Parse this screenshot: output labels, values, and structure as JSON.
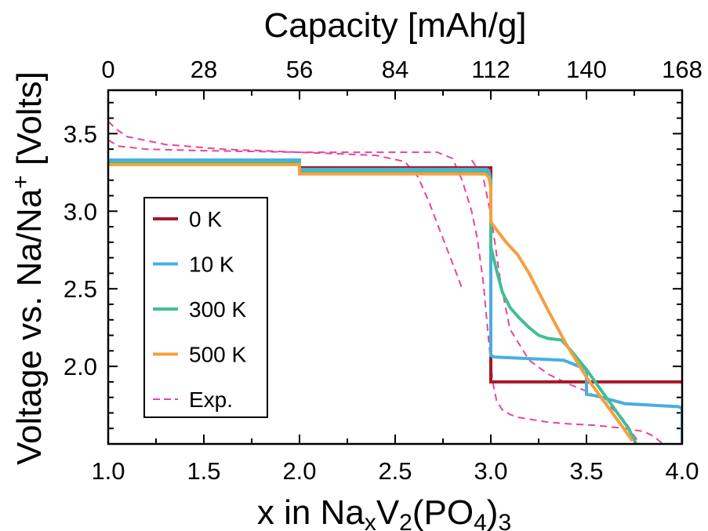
{
  "chart_data": {
    "type": "line",
    "xlabel": "x in NaₓV₂(PO₄)₃",
    "ylabel": "Voltage vs. Na/Na⁺ [Volts]",
    "top_xlabel": "Capacity [mAh/g]",
    "xlim": [
      1.0,
      4.0
    ],
    "ylim": [
      1.5,
      3.78
    ],
    "x_ticks": [
      "1.0",
      "1.5",
      "2.0",
      "2.5",
      "3.0",
      "3.5",
      "4.0"
    ],
    "y_ticks": [
      "2.0",
      "2.5",
      "3.0",
      "3.5"
    ],
    "top_ticks": [
      "0",
      "28",
      "56",
      "84",
      "112",
      "140",
      "168"
    ],
    "legend_position": "center-left",
    "series": [
      {
        "name": "0 K",
        "color": "#a31a2a",
        "style": "solid",
        "x": [
          1.0,
          2.0,
          2.0,
          3.0,
          3.0,
          4.0
        ],
        "y": [
          3.32,
          3.32,
          3.28,
          3.28,
          1.9,
          1.9
        ]
      },
      {
        "name": "10 K",
        "color": "#4aaee0",
        "style": "solid",
        "x": [
          1.0,
          2.0,
          2.0,
          2.98,
          2.99,
          3.0,
          3.0,
          3.02,
          3.2,
          3.38,
          3.42,
          3.5,
          3.5,
          3.55,
          3.7,
          3.98,
          4.0,
          4.0
        ],
        "y": [
          3.33,
          3.33,
          3.27,
          3.27,
          3.26,
          3.2,
          2.07,
          2.06,
          2.05,
          2.04,
          2.02,
          1.98,
          1.82,
          1.81,
          1.76,
          1.74,
          1.73,
          1.5
        ]
      },
      {
        "name": "300 K",
        "color": "#3fbf94",
        "style": "solid",
        "x": [
          1.0,
          2.0,
          2.0,
          2.98,
          3.0,
          3.0,
          3.03,
          3.06,
          3.1,
          3.15,
          3.2,
          3.25,
          3.3,
          3.37,
          3.42,
          3.5,
          3.58,
          3.65,
          3.72,
          3.76
        ],
        "y": [
          3.31,
          3.31,
          3.25,
          3.25,
          3.2,
          2.77,
          2.62,
          2.48,
          2.38,
          2.31,
          2.25,
          2.2,
          2.18,
          2.17,
          2.1,
          1.98,
          1.84,
          1.72,
          1.6,
          1.5
        ]
      },
      {
        "name": "500 K",
        "color": "#f4a03e",
        "style": "solid",
        "x": [
          1.0,
          2.0,
          2.0,
          2.97,
          2.99,
          3.0,
          3.0,
          3.03,
          3.08,
          3.14,
          3.2,
          3.3,
          3.4,
          3.5,
          3.6,
          3.7,
          3.74
        ],
        "y": [
          3.3,
          3.3,
          3.24,
          3.24,
          3.22,
          3.15,
          2.93,
          2.88,
          2.8,
          2.72,
          2.6,
          2.36,
          2.13,
          1.93,
          1.76,
          1.59,
          1.52
        ]
      },
      {
        "name": "Exp.",
        "color": "#e8449c",
        "style": "dashed",
        "segments": [
          {
            "x": [
              1.0,
              1.04,
              1.1,
              1.3,
              1.6,
              2.0,
              2.4,
              2.55,
              2.62,
              2.68,
              2.72,
              2.77,
              2.82,
              2.85
            ],
            "y": [
              3.58,
              3.53,
              3.48,
              3.43,
              3.4,
              3.38,
              3.36,
              3.32,
              3.22,
              3.05,
              2.92,
              2.76,
              2.6,
              2.5
            ]
          },
          {
            "x": [
              1.0,
              1.05,
              1.2,
              1.5,
              2.0,
              2.5,
              2.72,
              2.8,
              2.85,
              2.9,
              2.93,
              2.96,
              2.99,
              3.01,
              3.03,
              3.06,
              3.1,
              3.15,
              3.2,
              3.3,
              3.4,
              3.55,
              3.7,
              3.8,
              3.85,
              3.88,
              3.9,
              3.92
            ],
            "y": [
              3.46,
              3.42,
              3.4,
              3.39,
              3.38,
              3.38,
              3.38,
              3.34,
              3.2,
              3.0,
              2.82,
              2.55,
              2.15,
              1.9,
              1.78,
              1.72,
              1.69,
              1.67,
              1.66,
              1.64,
              1.63,
              1.62,
              1.6,
              1.58,
              1.55,
              1.52,
              1.5,
              1.48
            ]
          },
          {
            "x": [
              2.9,
              2.96,
              3.0,
              3.05,
              3.1,
              3.2,
              3.3,
              3.4,
              3.5,
              3.6,
              3.7,
              3.75,
              3.78
            ],
            "y": [
              3.33,
              3.22,
              2.98,
              2.55,
              2.24,
              2.04,
              1.95,
              1.89,
              1.84,
              1.77,
              1.65,
              1.55,
              1.5
            ]
          }
        ]
      }
    ]
  }
}
